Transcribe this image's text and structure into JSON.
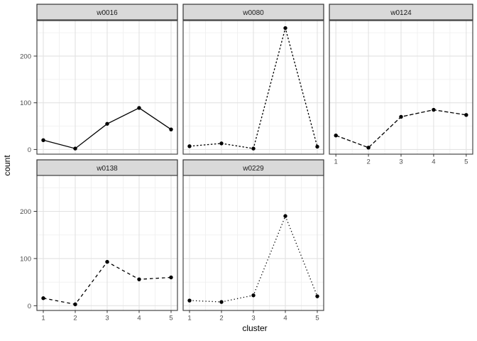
{
  "chart_data": {
    "type": "line",
    "title": "",
    "xlabel": "cluster",
    "ylabel": "count",
    "x": [
      1,
      2,
      3,
      4,
      5
    ],
    "x_tick_labels": [
      "1",
      "2",
      "3",
      "4",
      "5"
    ],
    "y_ticks": [
      0,
      100,
      200
    ],
    "y_minor_ticks": [
      50,
      150,
      250
    ],
    "x_minor_ticks": [
      1.5,
      2.5,
      3.5,
      4.5
    ],
    "xlim": [
      0.8,
      5.2
    ],
    "ylim": [
      -10,
      276
    ],
    "grid": "major and minor, light gray on white (theme_bw style)",
    "legend_position": "none",
    "point_marker": "filled-circle",
    "facet_variable_values": [
      "w0016",
      "w0080",
      "w0124",
      "w0138",
      "w0229"
    ],
    "facets": [
      {
        "label": "w0016",
        "row": 0,
        "col": 0,
        "linetype": "solid",
        "values": [
          20,
          2,
          55,
          89,
          43
        ]
      },
      {
        "label": "w0080",
        "row": 0,
        "col": 1,
        "linetype": "dashed-short",
        "values": [
          7,
          13,
          2,
          260,
          6
        ]
      },
      {
        "label": "w0124",
        "row": 0,
        "col": 2,
        "linetype": "dashed-long",
        "values": [
          30,
          4,
          70,
          85,
          74
        ]
      },
      {
        "label": "w0138",
        "row": 1,
        "col": 0,
        "linetype": "dashed",
        "values": [
          16,
          3,
          93,
          56,
          60
        ]
      },
      {
        "label": "w0229",
        "row": 1,
        "col": 1,
        "linetype": "dotted",
        "values": [
          11,
          8,
          22,
          190,
          20
        ]
      }
    ]
  },
  "style": {
    "background": "#ffffff",
    "strip_fill": "#d9d9d9",
    "strip_border": "#333333",
    "strip_text_color": "#1a1a1a",
    "panel_border": "#454545",
    "panel_fill": "#ffffff",
    "grid_major": "#e2e2e2",
    "grid_minor": "#f0f0f0",
    "line_color": "#000000",
    "point_color": "#000000",
    "tick_mark_color": "#333333",
    "tick_label_color": "#4d4d4d",
    "axis_title_color": "#000000"
  }
}
